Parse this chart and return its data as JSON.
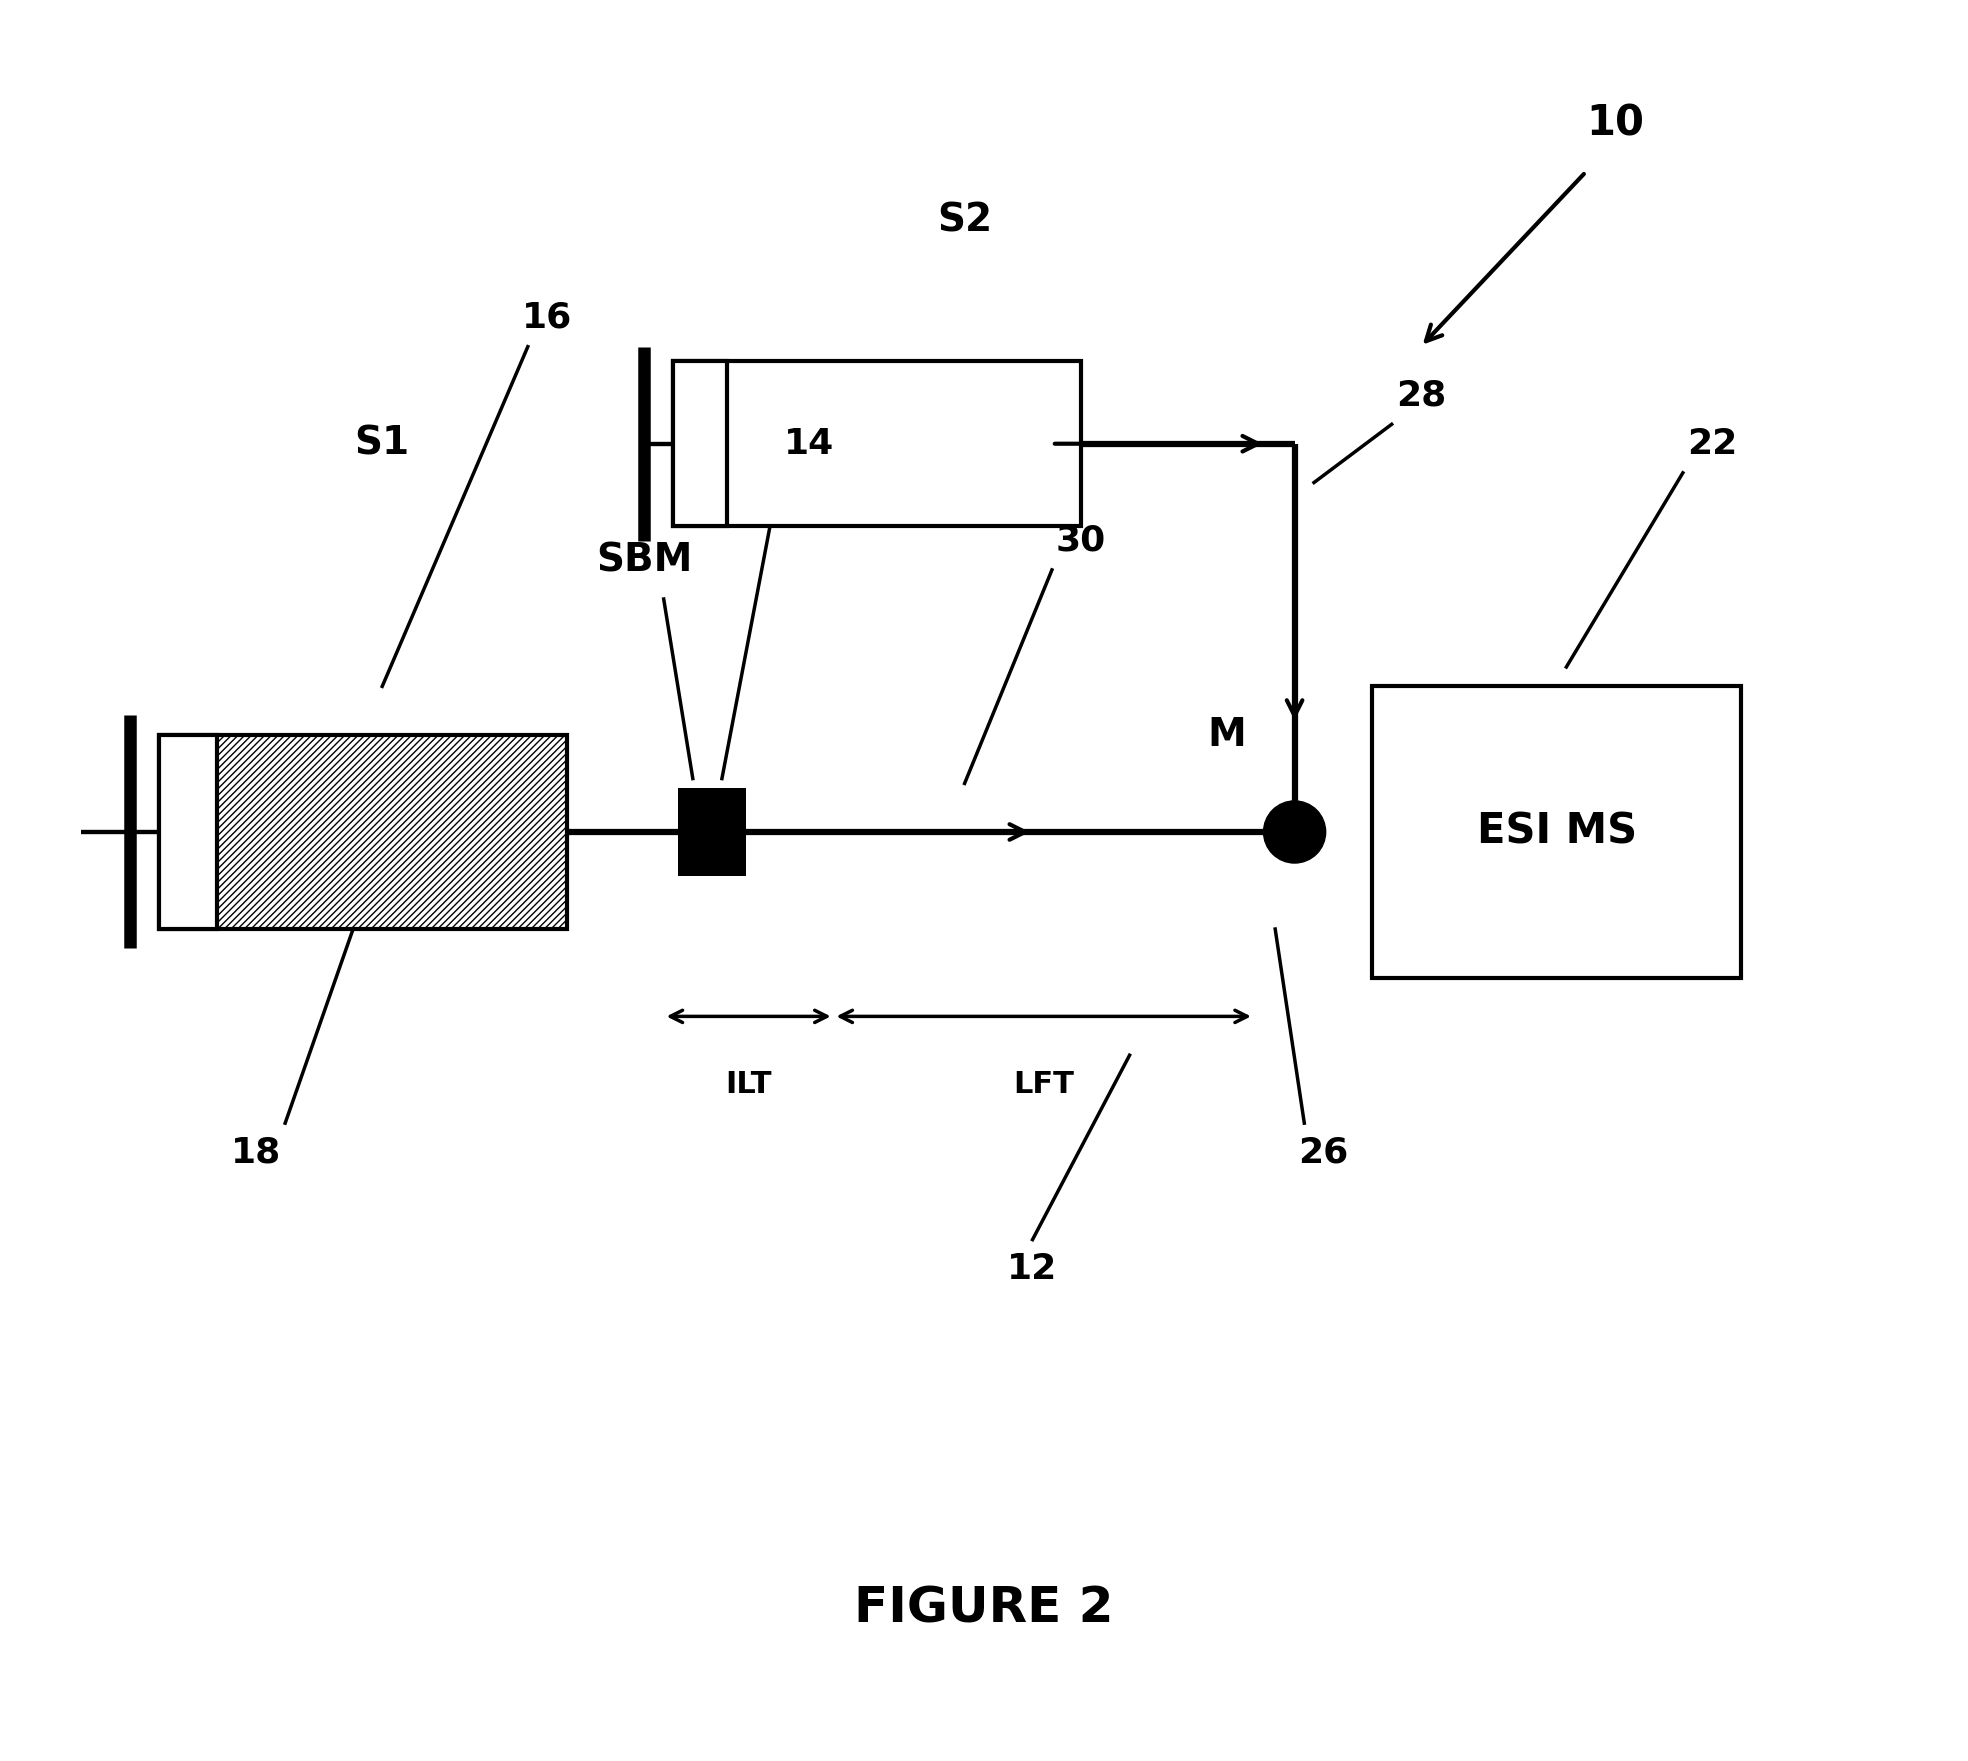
{
  "bg_color": "#ffffff",
  "fig_width": 19.68,
  "fig_height": 17.61,
  "figure_label": "FIGURE 2",
  "labels": {
    "num_10": "10",
    "num_12": "12",
    "num_14": "14",
    "num_16": "16",
    "num_18": "18",
    "num_22": "22",
    "num_26": "26",
    "num_28": "28",
    "num_30": "30",
    "S1": "S1",
    "S2": "S2",
    "SBM": "SBM",
    "M": "M",
    "ESI_MS": "ESI MS",
    "ILT": "ILT",
    "LFT": "LFT"
  },
  "text_color": "#000000",
  "line_color": "#000000"
}
